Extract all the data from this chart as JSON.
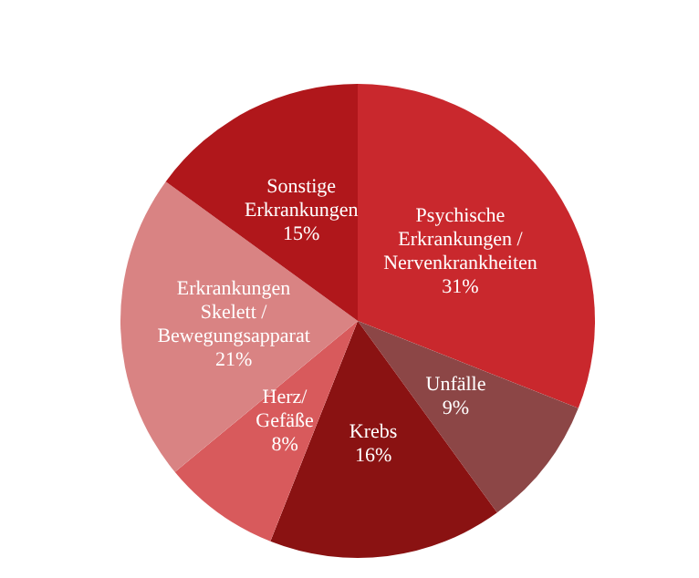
{
  "chart_data": {
    "type": "pie",
    "categories": [
      "Psychische\nErkrankungen /\nNervenkrankheiten",
      "Unfälle",
      "Krebs",
      "Herz/\nGefäße",
      "Erkrankungen\nSkelett /\nBewegungsapparat",
      "Sonstige\nErkrankungen"
    ],
    "values": [
      31,
      9,
      16,
      8,
      21,
      15
    ],
    "value_labels": [
      "31%",
      "9%",
      "16%",
      "8%",
      "21%",
      "15%"
    ],
    "colors": [
      "#c9282d",
      "#8c4646",
      "#8a1212",
      "#d85a5c",
      "#d98383",
      "#b0171b"
    ]
  }
}
